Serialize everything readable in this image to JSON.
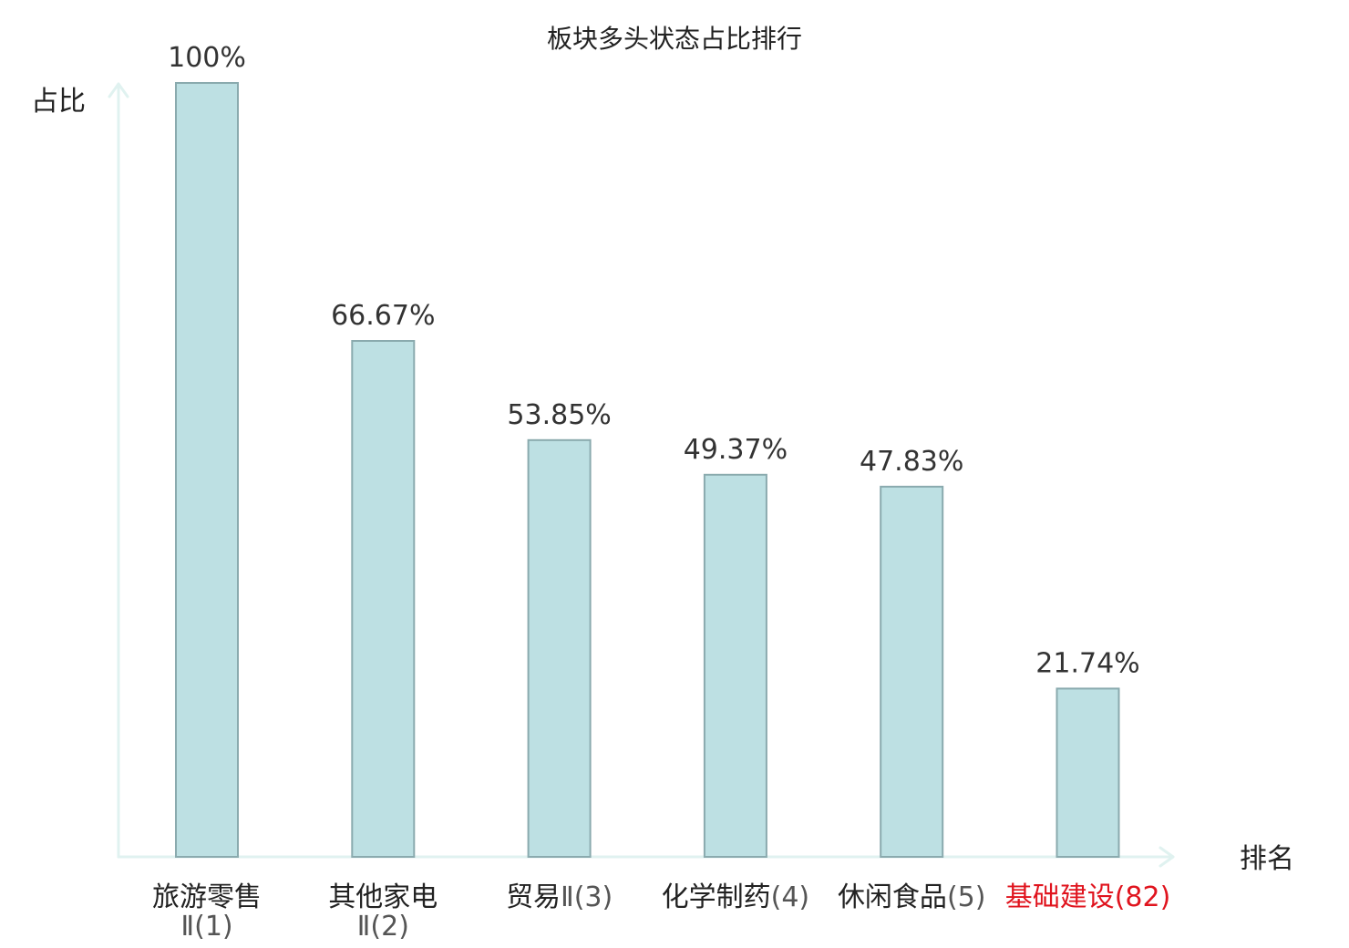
{
  "chart_data": {
    "type": "bar",
    "title": "板块多头状态占比排行",
    "ylabel": "占比",
    "xlabel": "排名",
    "ylim": [
      0,
      100
    ],
    "grid": false,
    "categories": [
      {
        "name": "旅游零售",
        "rank_line": "Ⅱ(1)",
        "highlight": false,
        "wrap": true
      },
      {
        "name": "其他家电",
        "rank_line": "Ⅱ(2)",
        "highlight": false,
        "wrap": true
      },
      {
        "name": "贸易",
        "rank_line": "Ⅱ(3)",
        "highlight": false,
        "wrap": false
      },
      {
        "name": "化学制药",
        "rank_line": "(4)",
        "highlight": false,
        "wrap": false
      },
      {
        "name": "休闲食品",
        "rank_line": "(5)",
        "highlight": false,
        "wrap": false
      },
      {
        "name": "基础建设",
        "rank_line": "(82)",
        "highlight": true,
        "wrap": false
      }
    ],
    "values": [
      100,
      66.67,
      53.85,
      49.37,
      47.83,
      21.74
    ],
    "value_labels": [
      "100%",
      "66.67%",
      "53.85%",
      "49.37%",
      "47.83%",
      "21.74%"
    ],
    "colors": {
      "bar_fill": "#bde0e3",
      "bar_stroke": "#8aaaae",
      "axis": "#e0f2f0",
      "highlight": "#e0141e"
    }
  }
}
